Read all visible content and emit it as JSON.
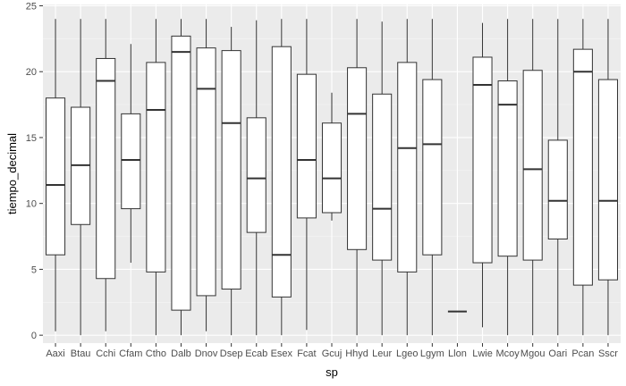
{
  "chart_data": {
    "type": "boxplot",
    "xlabel": "sp",
    "ylabel": "tiempo_decimal",
    "ylim": [
      -0.6,
      25.1
    ],
    "y_ticks": [
      0,
      5,
      10,
      15,
      20,
      25
    ],
    "grid": true,
    "legend": "none",
    "colors": {
      "panel_background": "#ebebeb",
      "grid_major": "#ffffff",
      "grid_minor": "#f5f5f5",
      "box_fill": "#ffffff",
      "box_stroke": "#333333",
      "tick_text": "#4d4d4d"
    },
    "categories": [
      "Aaxi",
      "Btau",
      "Cchi",
      "Cfam",
      "Ctho",
      "Dalb",
      "Dnov",
      "Dsep",
      "Ecab",
      "Esex",
      "Fcat",
      "Gcuj",
      "Hhyd",
      "Leur",
      "Lgeo",
      "Lgym",
      "Llon",
      "Lwie",
      "Mcoy",
      "Mgou",
      "Oari",
      "Pcan",
      "Sscr"
    ],
    "boxes": [
      {
        "min": 0.3,
        "q1": 6.1,
        "median": 11.4,
        "q3": 18.0,
        "max": 24.0
      },
      {
        "min": 0.0,
        "q1": 8.4,
        "median": 12.9,
        "q3": 17.3,
        "max": 24.0
      },
      {
        "min": 0.3,
        "q1": 4.3,
        "median": 19.3,
        "q3": 21.0,
        "max": 24.0
      },
      {
        "min": 5.5,
        "q1": 9.6,
        "median": 13.3,
        "q3": 16.8,
        "max": 22.1
      },
      {
        "min": 0.0,
        "q1": 4.8,
        "median": 17.1,
        "q3": 20.7,
        "max": 24.0
      },
      {
        "min": 0.0,
        "q1": 1.9,
        "median": 21.5,
        "q3": 22.7,
        "max": 24.0
      },
      {
        "min": 0.3,
        "q1": 3.0,
        "median": 18.7,
        "q3": 21.8,
        "max": 24.0
      },
      {
        "min": 0.0,
        "q1": 3.5,
        "median": 16.1,
        "q3": 21.6,
        "max": 23.4
      },
      {
        "min": 0.0,
        "q1": 7.8,
        "median": 11.9,
        "q3": 16.5,
        "max": 23.9
      },
      {
        "min": 0.0,
        "q1": 2.9,
        "median": 6.1,
        "q3": 21.9,
        "max": 24.0
      },
      {
        "min": 0.4,
        "q1": 8.9,
        "median": 13.3,
        "q3": 19.8,
        "max": 24.0
      },
      {
        "min": 8.7,
        "q1": 9.3,
        "median": 11.9,
        "q3": 16.1,
        "max": 18.4
      },
      {
        "min": 0.0,
        "q1": 6.5,
        "median": 16.8,
        "q3": 20.3,
        "max": 24.0
      },
      {
        "min": 0.0,
        "q1": 5.7,
        "median": 9.6,
        "q3": 18.3,
        "max": 23.8
      },
      {
        "min": 0.0,
        "q1": 4.8,
        "median": 14.2,
        "q3": 20.7,
        "max": 24.0
      },
      {
        "min": 0.0,
        "q1": 6.1,
        "median": 14.5,
        "q3": 19.4,
        "max": 24.0
      },
      {
        "min": 1.8,
        "q1": 1.8,
        "median": 1.8,
        "q3": 1.8,
        "max": 1.8
      },
      {
        "min": 0.6,
        "q1": 5.5,
        "median": 19.0,
        "q3": 21.1,
        "max": 23.7
      },
      {
        "min": 0.0,
        "q1": 6.0,
        "median": 17.5,
        "q3": 19.3,
        "max": 24.0
      },
      {
        "min": 0.0,
        "q1": 5.7,
        "median": 12.6,
        "q3": 20.1,
        "max": 24.0
      },
      {
        "min": 0.0,
        "q1": 7.3,
        "median": 10.2,
        "q3": 14.8,
        "max": 24.0
      },
      {
        "min": 0.0,
        "q1": 3.8,
        "median": 20.0,
        "q3": 21.7,
        "max": 24.0
      },
      {
        "min": 0.0,
        "q1": 4.2,
        "median": 10.2,
        "q3": 19.4,
        "max": 24.0
      }
    ]
  }
}
